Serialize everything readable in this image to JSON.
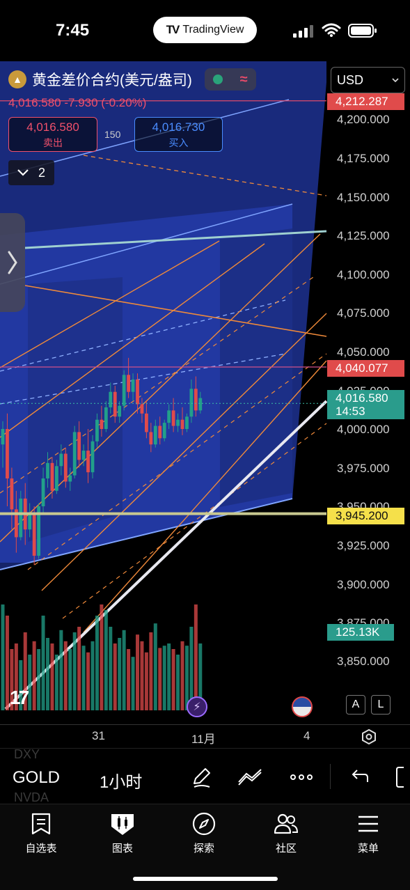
{
  "status_bar": {
    "time": "7:45",
    "app_pill": "TradingView",
    "app_pill_logo": "TV"
  },
  "header": {
    "symbol_name": "黄金差价合约(美元/盎司)",
    "price_change": "4,016.580  -7.930 (-0.20%)",
    "sell_price": "4,016.580",
    "sell_label": "卖出",
    "spread": "150",
    "buy_price": "4,016.730",
    "buy_label": "买入",
    "indicator_count": "2",
    "currency": "USD"
  },
  "price_axis": {
    "labels": [
      "4,200.000",
      "4,175.000",
      "4,150.000",
      "4,125.000",
      "4,100.000",
      "4,075.000",
      "4,050.000",
      "4,025.000",
      "4,000.000",
      "3,975.000",
      "3,950.000",
      "3,925.000",
      "3,900.000",
      "3,875.000",
      "3,850.000"
    ],
    "tag_high": "4,212.287",
    "tag_level": "4,040.077",
    "tag_current_price": "4,016.580",
    "tag_countdown": "14:53",
    "tag_support": "3,945.200",
    "tag_volume": "125.13K"
  },
  "time_axis": {
    "labels": [
      "31",
      "11月",
      "4"
    ]
  },
  "scale_buttons": {
    "auto": "A",
    "log": "L"
  },
  "toolbar": {
    "symbol": "GOLD",
    "interval": "1小时",
    "ghost_above": "DXY",
    "ghost_below": "NVDA"
  },
  "tabs": [
    {
      "label": "自选表",
      "icon": "watchlist-icon"
    },
    {
      "label": "图表",
      "icon": "chart-icon"
    },
    {
      "label": "探索",
      "icon": "compass-icon"
    },
    {
      "label": "社区",
      "icon": "community-icon"
    },
    {
      "label": "菜单",
      "icon": "menu-icon"
    }
  ],
  "colors": {
    "up": "#22a08a",
    "down": "#e04b4b",
    "pitchfork_fill": "#1c2f8a",
    "fib_orange": "#f08a3a",
    "support_yellow": "#f5e04a",
    "volume_tag": "#2a9c8c"
  },
  "chart_data": {
    "type": "candlestick",
    "y_range": [
      3840,
      4220
    ],
    "candles": [
      {
        "o": 3990,
        "h": 4005,
        "c": 4000,
        "l": 3975
      },
      {
        "o": 4000,
        "h": 4010,
        "c": 3968,
        "l": 3950
      },
      {
        "o": 3968,
        "h": 3975,
        "c": 3948,
        "l": 3935
      },
      {
        "o": 3948,
        "h": 3960,
        "c": 3930,
        "l": 3920
      },
      {
        "o": 3930,
        "h": 3960,
        "c": 3955,
        "l": 3928
      },
      {
        "o": 3955,
        "h": 3965,
        "c": 3935,
        "l": 3925
      },
      {
        "o": 3935,
        "h": 3952,
        "c": 3945,
        "l": 3930
      },
      {
        "o": 3945,
        "h": 3950,
        "c": 3918,
        "l": 3912
      },
      {
        "o": 3918,
        "h": 3952,
        "c": 3950,
        "l": 3916
      },
      {
        "o": 3950,
        "h": 3975,
        "c": 3968,
        "l": 3945
      },
      {
        "o": 3968,
        "h": 3985,
        "c": 3978,
        "l": 3962
      },
      {
        "o": 3978,
        "h": 3982,
        "c": 3960,
        "l": 3955
      },
      {
        "o": 3960,
        "h": 3980,
        "c": 3976,
        "l": 3958
      },
      {
        "o": 3976,
        "h": 3990,
        "c": 3984,
        "l": 3970
      },
      {
        "o": 3984,
        "h": 3988,
        "c": 3966,
        "l": 3962
      },
      {
        "o": 3966,
        "h": 3975,
        "c": 3970,
        "l": 3960
      },
      {
        "o": 3970,
        "h": 4002,
        "c": 3998,
        "l": 3968
      },
      {
        "o": 3998,
        "h": 4005,
        "c": 3980,
        "l": 3975
      },
      {
        "o": 3980,
        "h": 3990,
        "c": 3986,
        "l": 3976
      },
      {
        "o": 3986,
        "h": 4000,
        "c": 3972,
        "l": 3965
      },
      {
        "o": 3972,
        "h": 3996,
        "c": 3992,
        "l": 3968
      },
      {
        "o": 3992,
        "h": 4010,
        "c": 4006,
        "l": 3988
      },
      {
        "o": 4006,
        "h": 4015,
        "c": 4000,
        "l": 3995
      },
      {
        "o": 4000,
        "h": 4018,
        "c": 4014,
        "l": 3998
      },
      {
        "o": 4014,
        "h": 4030,
        "c": 4024,
        "l": 4010
      },
      {
        "o": 4024,
        "h": 4028,
        "c": 4008,
        "l": 4004
      },
      {
        "o": 4008,
        "h": 4018,
        "c": 4015,
        "l": 4004
      },
      {
        "o": 4015,
        "h": 4038,
        "c": 4035,
        "l": 4012
      },
      {
        "o": 4035,
        "h": 4046,
        "c": 4024,
        "l": 4020
      },
      {
        "o": 4024,
        "h": 4036,
        "c": 4032,
        "l": 4018
      },
      {
        "o": 4032,
        "h": 4036,
        "c": 4016,
        "l": 4010
      },
      {
        "o": 4016,
        "h": 4020,
        "c": 4010,
        "l": 4004
      },
      {
        "o": 4010,
        "h": 4018,
        "c": 3998,
        "l": 3994
      },
      {
        "o": 3998,
        "h": 4004,
        "c": 3990,
        "l": 3985
      },
      {
        "o": 3990,
        "h": 4006,
        "c": 4002,
        "l": 3988
      },
      {
        "o": 4002,
        "h": 4008,
        "c": 3994,
        "l": 3990
      },
      {
        "o": 3994,
        "h": 4006,
        "c": 4004,
        "l": 3992
      },
      {
        "o": 4004,
        "h": 4016,
        "c": 4012,
        "l": 4000
      },
      {
        "o": 4012,
        "h": 4020,
        "c": 4002,
        "l": 3998
      },
      {
        "o": 4002,
        "h": 4010,
        "c": 4006,
        "l": 3998
      },
      {
        "o": 4006,
        "h": 4014,
        "c": 4000,
        "l": 3996
      },
      {
        "o": 4000,
        "h": 4010,
        "c": 4008,
        "l": 3998
      },
      {
        "o": 4008,
        "h": 4032,
        "c": 4026,
        "l": 4004
      },
      {
        "o": 4026,
        "h": 4034,
        "c": 4012,
        "l": 4008
      },
      {
        "o": 4012,
        "h": 4024,
        "c": 4020,
        "l": 4010
      }
    ],
    "volumes": [
      0.95,
      0.85,
      0.55,
      0.6,
      0.45,
      0.7,
      0.5,
      0.62,
      0.55,
      0.85,
      0.65,
      0.6,
      0.5,
      0.72,
      0.62,
      0.55,
      0.7,
      0.75,
      0.58,
      0.52,
      0.62,
      0.85,
      0.95,
      0.9,
      0.75,
      0.6,
      0.65,
      0.72,
      0.55,
      0.48,
      0.68,
      0.62,
      0.52,
      0.7,
      0.78,
      0.56,
      0.58,
      0.6,
      0.55,
      0.5,
      0.62,
      0.58,
      0.75,
      0.95,
      0.6
    ],
    "levels": {
      "high": 4212.287,
      "resistance": 4040.077,
      "current": 4016.58,
      "support": 3945.2
    }
  }
}
